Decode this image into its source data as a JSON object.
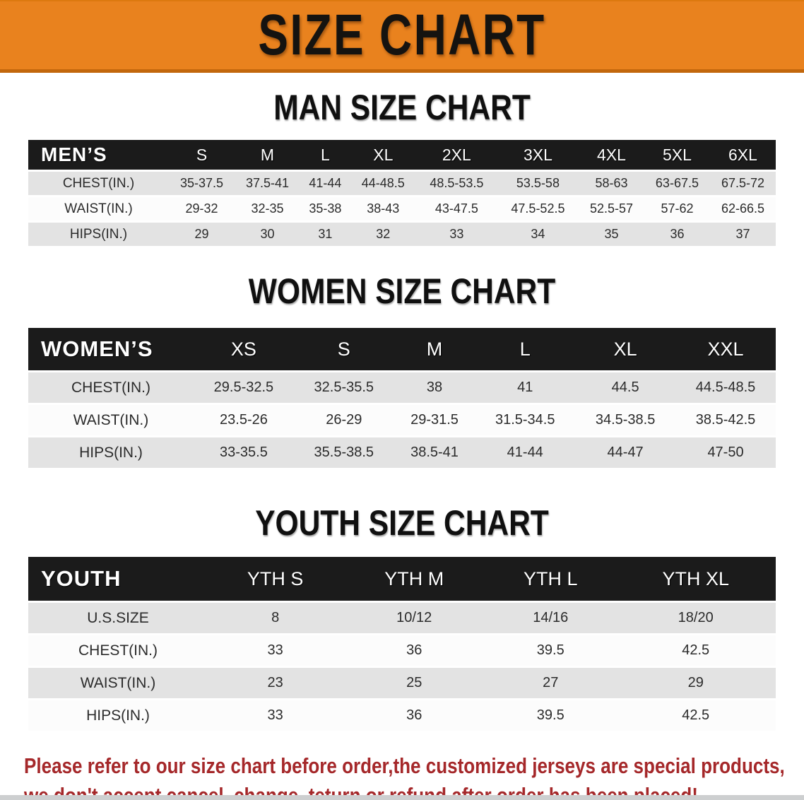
{
  "banner": {
    "title": "SIZE CHART"
  },
  "sections": [
    {
      "id": "men",
      "heading": "MAN SIZE CHART",
      "table": {
        "label": "MEN’S",
        "columns": [
          "S",
          "M",
          "L",
          "XL",
          "2XL",
          "3XL",
          "4XL",
          "5XL",
          "6XL"
        ],
        "rows": [
          {
            "label": "CHEST(IN.)",
            "values": [
              "35-37.5",
              "37.5-41",
              "41-44",
              "44-48.5",
              "48.5-53.5",
              "53.5-58",
              "58-63",
              "63-67.5",
              "67.5-72"
            ]
          },
          {
            "label": "WAIST(IN.)",
            "values": [
              "29-32",
              "32-35",
              "35-38",
              "38-43",
              "43-47.5",
              "47.5-52.5",
              "52.5-57",
              "57-62",
              "62-66.5"
            ]
          },
          {
            "label": "HIPS(IN.)",
            "values": [
              "29",
              "30",
              "31",
              "32",
              "33",
              "34",
              "35",
              "36",
              "37"
            ]
          }
        ]
      }
    },
    {
      "id": "women",
      "heading": "WOMEN SIZE CHART",
      "table": {
        "label": "WOMEN’S",
        "columns": [
          "XS",
          "S",
          "M",
          "L",
          "XL",
          "XXL"
        ],
        "rows": [
          {
            "label": "CHEST(IN.)",
            "values": [
              "29.5-32.5",
              "32.5-35.5",
              "38",
              "41",
              "44.5",
              "44.5-48.5"
            ]
          },
          {
            "label": "WAIST(IN.)",
            "values": [
              "23.5-26",
              "26-29",
              "29-31.5",
              "31.5-34.5",
              "34.5-38.5",
              "38.5-42.5"
            ]
          },
          {
            "label": "HIPS(IN.)",
            "values": [
              "33-35.5",
              "35.5-38.5",
              "38.5-41",
              "41-44",
              "44-47",
              "47-50"
            ]
          }
        ]
      }
    },
    {
      "id": "youth",
      "heading": "YOUTH SIZE CHART",
      "table": {
        "label": "YOUTH",
        "columns": [
          "YTH S",
          "YTH M",
          "YTH L",
          "YTH XL"
        ],
        "rows": [
          {
            "label": "U.S.SIZE",
            "values": [
              "8",
              "10/12",
              "14/16",
              "18/20"
            ]
          },
          {
            "label": "CHEST(IN.)",
            "values": [
              "33",
              "36",
              "39.5",
              "42.5"
            ]
          },
          {
            "label": "WAIST(IN.)",
            "values": [
              "23",
              "25",
              "27",
              "29"
            ]
          },
          {
            "label": "HIPS(IN.)",
            "values": [
              "33",
              "36",
              "39.5",
              "42.5"
            ]
          }
        ]
      }
    }
  ],
  "footer_note": {
    "line1": "Please refer to our size chart before order,the customized jerseys are special products,",
    "line2": "we don't accept cancel, change, teturn or refund after order has been placed!"
  },
  "colors": {
    "banner_bg": "#E9821E",
    "banner_border_bottom": "#C2670C",
    "banner_border_top": "#DD790F",
    "header_bar": "#1B1B1B",
    "row_gray": "#E3E3E3",
    "row_white": "#FCFCFC",
    "note_red": "#A5282A",
    "heading_text": "#101010"
  }
}
